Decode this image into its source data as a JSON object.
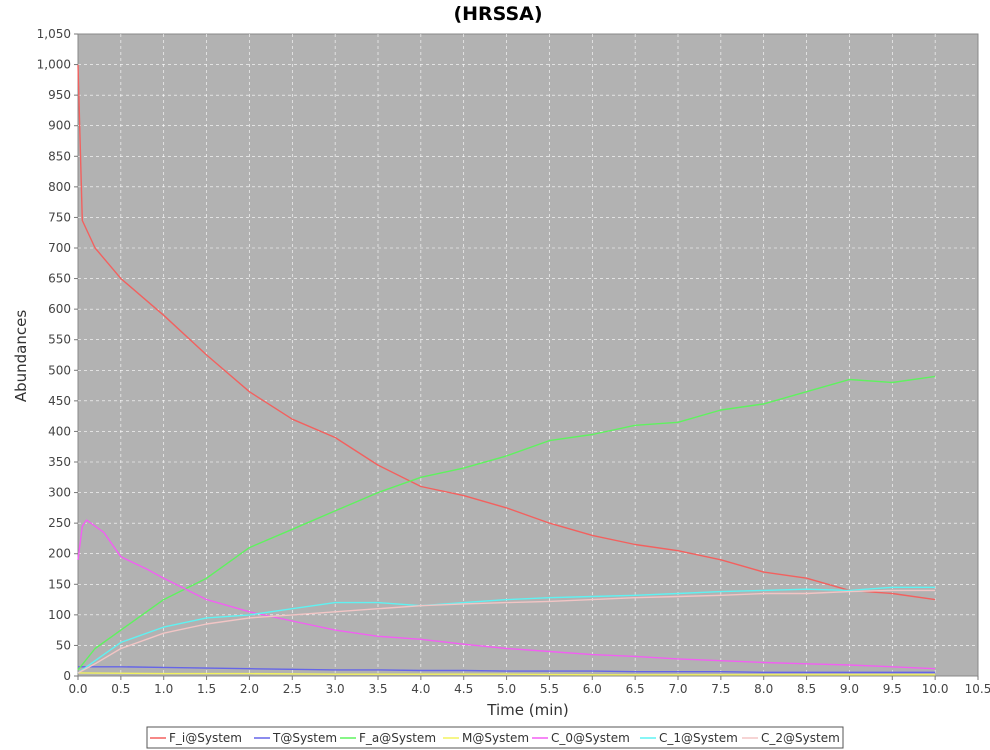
{
  "chart_data": {
    "type": "line",
    "title": "(HRSSA)",
    "xlabel": "Time (min)",
    "ylabel": "Abundances",
    "xlim": [
      0,
      10.5
    ],
    "ylim": [
      0,
      1050
    ],
    "x_ticks": [
      "0.0",
      "0.5",
      "1.0",
      "1.5",
      "2.0",
      "2.5",
      "3.0",
      "3.5",
      "4.0",
      "4.5",
      "5.0",
      "5.5",
      "6.0",
      "6.5",
      "7.0",
      "7.5",
      "8.0",
      "8.5",
      "9.0",
      "9.5",
      "10.0",
      "10.5"
    ],
    "y_ticks": [
      "0",
      "50",
      "100",
      "150",
      "200",
      "250",
      "300",
      "350",
      "400",
      "450",
      "500",
      "550",
      "600",
      "650",
      "700",
      "750",
      "800",
      "850",
      "900",
      "950",
      "1,000",
      "1,050"
    ],
    "grid": true,
    "legend_position": "bottom",
    "plot_background": "#b2b2b2",
    "series": [
      {
        "name": "F_i@System",
        "color": "#f2615f",
        "x": [
          0,
          0.05,
          0.2,
          0.5,
          1.0,
          1.5,
          2.0,
          2.5,
          3.0,
          3.5,
          4.0,
          4.5,
          5.0,
          5.5,
          6.0,
          6.5,
          7.0,
          7.5,
          8.0,
          8.5,
          9.0,
          9.5,
          10.0
        ],
        "y": [
          1000,
          745,
          700,
          650,
          590,
          525,
          465,
          420,
          390,
          345,
          310,
          295,
          275,
          250,
          230,
          215,
          205,
          190,
          170,
          160,
          140,
          135,
          125
        ]
      },
      {
        "name": "T@System",
        "color": "#6565e8",
        "x": [
          0,
          0.5,
          1.0,
          1.5,
          2.0,
          2.5,
          3.0,
          3.5,
          4.0,
          4.5,
          5.0,
          5.5,
          6.0,
          6.5,
          7.0,
          7.5,
          8.0,
          8.5,
          9.0,
          9.5,
          10.0
        ],
        "y": [
          15,
          15,
          14,
          13,
          12,
          11,
          10,
          10,
          9,
          9,
          8,
          8,
          8,
          7,
          7,
          7,
          6,
          6,
          6,
          6,
          6
        ]
      },
      {
        "name": "F_a@System",
        "color": "#5ff25f",
        "x": [
          0,
          0.2,
          0.5,
          1.0,
          1.5,
          2.0,
          2.5,
          3.0,
          3.5,
          4.0,
          4.5,
          5.0,
          5.5,
          6.0,
          6.5,
          7.0,
          7.5,
          8.0,
          8.5,
          9.0,
          9.5,
          10.0
        ],
        "y": [
          10,
          45,
          75,
          125,
          160,
          210,
          240,
          270,
          300,
          325,
          340,
          360,
          385,
          395,
          410,
          415,
          435,
          445,
          465,
          485,
          480,
          490
        ]
      },
      {
        "name": "M@System",
        "color": "#f2f25f",
        "x": [
          0,
          1.0,
          2.0,
          3.0,
          4.0,
          5.0,
          6.0,
          7.0,
          8.0,
          9.0,
          10.0
        ],
        "y": [
          5,
          4,
          4,
          3,
          3,
          3,
          2,
          2,
          2,
          2,
          2
        ]
      },
      {
        "name": "C_0@System",
        "color": "#f25ff2",
        "x": [
          0,
          0.05,
          0.1,
          0.3,
          0.5,
          0.8,
          1.0,
          1.5,
          2.0,
          2.5,
          3.0,
          3.5,
          4.0,
          4.5,
          5.0,
          5.5,
          6.0,
          6.5,
          7.0,
          7.5,
          8.0,
          8.5,
          9.0,
          9.5,
          10.0
        ],
        "y": [
          190,
          245,
          255,
          235,
          195,
          175,
          160,
          125,
          105,
          90,
          75,
          65,
          60,
          52,
          45,
          40,
          35,
          32,
          28,
          25,
          22,
          20,
          18,
          15,
          12
        ]
      },
      {
        "name": "C_1@System",
        "color": "#5ff2f2",
        "x": [
          0,
          0.2,
          0.5,
          1.0,
          1.5,
          2.0,
          2.5,
          3.0,
          3.5,
          4.0,
          4.5,
          5.0,
          5.5,
          6.0,
          6.5,
          7.0,
          7.5,
          8.0,
          8.5,
          9.0,
          9.5,
          10.0
        ],
        "y": [
          5,
          25,
          55,
          80,
          95,
          100,
          110,
          120,
          120,
          115,
          120,
          125,
          128,
          130,
          132,
          135,
          138,
          140,
          142,
          140,
          145,
          145
        ]
      },
      {
        "name": "C_2@System",
        "color": "#f2c5c5",
        "x": [
          0,
          0.2,
          0.5,
          1.0,
          1.5,
          2.0,
          2.5,
          3.0,
          3.5,
          4.0,
          4.5,
          5.0,
          5.5,
          6.0,
          6.5,
          7.0,
          7.5,
          8.0,
          8.5,
          9.0,
          9.5,
          10.0
        ],
        "y": [
          5,
          20,
          45,
          70,
          85,
          95,
          100,
          105,
          110,
          115,
          118,
          120,
          122,
          125,
          128,
          130,
          132,
          135,
          135,
          138,
          140,
          140
        ]
      }
    ]
  }
}
